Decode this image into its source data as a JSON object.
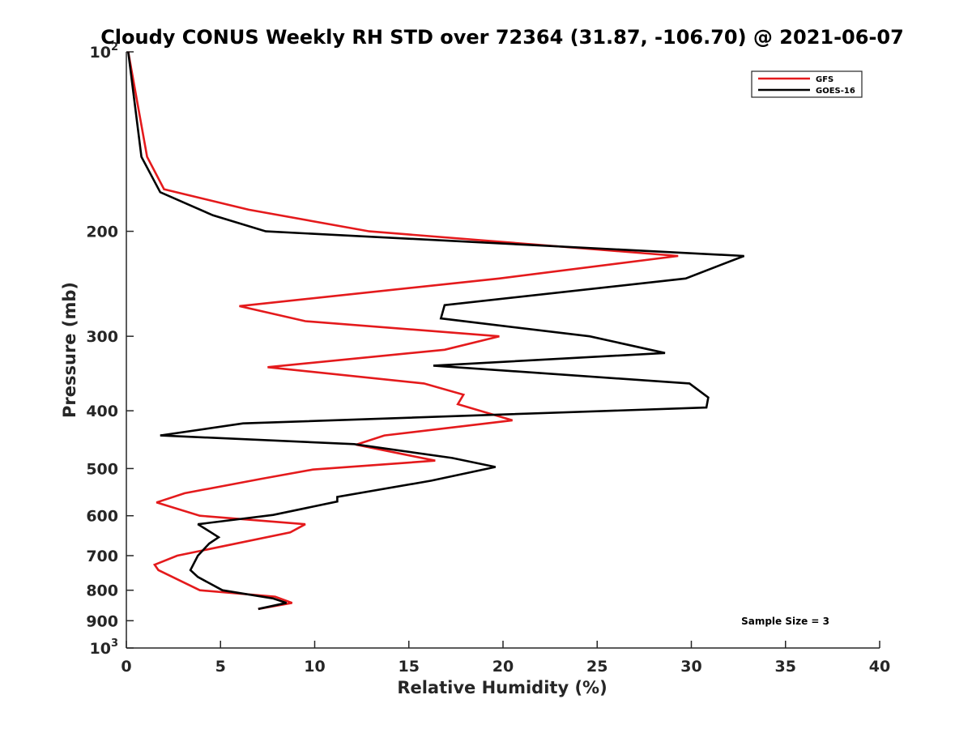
{
  "chart_data": {
    "type": "line",
    "title": "Cloudy CONUS Weekly RH STD over 72364 (31.87, -106.70) @ 2021-06-07",
    "xlabel": "Relative Humidity (%)",
    "ylabel": "Pressure (mb)",
    "xlim": [
      0,
      40
    ],
    "ylim": [
      100,
      1000
    ],
    "y_scale": "log",
    "y_reversed": true,
    "x_ticks": [
      "0",
      "5",
      "10",
      "15",
      "20",
      "25",
      "30",
      "35",
      "40"
    ],
    "y_ticks": [
      {
        "value": 100,
        "label": "10",
        "sup": "2"
      },
      {
        "value": 200,
        "label": "200",
        "sup": ""
      },
      {
        "value": 300,
        "label": "300",
        "sup": ""
      },
      {
        "value": 400,
        "label": "400",
        "sup": ""
      },
      {
        "value": 500,
        "label": "500",
        "sup": ""
      },
      {
        "value": 600,
        "label": "600",
        "sup": ""
      },
      {
        "value": 700,
        "label": "700",
        "sup": ""
      },
      {
        "value": 800,
        "label": "800",
        "sup": ""
      },
      {
        "value": 900,
        "label": "900",
        "sup": ""
      },
      {
        "value": 1000,
        "label": "10",
        "sup": "3"
      }
    ],
    "legend_position": "top-right",
    "annotation": "Sample Size = 3",
    "series": [
      {
        "name": "GFS",
        "color": "#e41a1c",
        "points": [
          {
            "x": 0.1,
            "p": 100
          },
          {
            "x": 1.1,
            "p": 150
          },
          {
            "x": 2.0,
            "p": 170
          },
          {
            "x": 6.5,
            "p": 184
          },
          {
            "x": 12.9,
            "p": 200
          },
          {
            "x": 29.3,
            "p": 220
          },
          {
            "x": 19.8,
            "p": 240
          },
          {
            "x": 6.0,
            "p": 267
          },
          {
            "x": 9.5,
            "p": 283
          },
          {
            "x": 19.8,
            "p": 300
          },
          {
            "x": 16.9,
            "p": 316
          },
          {
            "x": 7.5,
            "p": 338
          },
          {
            "x": 15.8,
            "p": 360
          },
          {
            "x": 17.9,
            "p": 376
          },
          {
            "x": 17.6,
            "p": 390
          },
          {
            "x": 20.5,
            "p": 415
          },
          {
            "x": 13.7,
            "p": 440
          },
          {
            "x": 12.2,
            "p": 456
          },
          {
            "x": 16.4,
            "p": 485
          },
          {
            "x": 9.9,
            "p": 502
          },
          {
            "x": 7.2,
            "p": 520
          },
          {
            "x": 3.1,
            "p": 550
          },
          {
            "x": 1.6,
            "p": 570
          },
          {
            "x": 3.9,
            "p": 600
          },
          {
            "x": 9.5,
            "p": 620
          },
          {
            "x": 8.7,
            "p": 640
          },
          {
            "x": 2.7,
            "p": 700
          },
          {
            "x": 1.5,
            "p": 725
          },
          {
            "x": 1.7,
            "p": 740
          },
          {
            "x": 3.9,
            "p": 800
          },
          {
            "x": 7.9,
            "p": 820
          },
          {
            "x": 8.8,
            "p": 840
          },
          {
            "x": 7.0,
            "p": 860
          }
        ]
      },
      {
        "name": "GOES-16",
        "color": "#000000",
        "points": [
          {
            "x": 0.1,
            "p": 100
          },
          {
            "x": 0.8,
            "p": 150
          },
          {
            "x": 1.8,
            "p": 172
          },
          {
            "x": 4.6,
            "p": 188
          },
          {
            "x": 7.4,
            "p": 200
          },
          {
            "x": 32.8,
            "p": 220
          },
          {
            "x": 29.7,
            "p": 240
          },
          {
            "x": 16.9,
            "p": 266
          },
          {
            "x": 16.7,
            "p": 280
          },
          {
            "x": 24.6,
            "p": 300
          },
          {
            "x": 28.6,
            "p": 320
          },
          {
            "x": 16.3,
            "p": 336
          },
          {
            "x": 29.9,
            "p": 360
          },
          {
            "x": 30.9,
            "p": 380
          },
          {
            "x": 30.8,
            "p": 395
          },
          {
            "x": 6.2,
            "p": 420
          },
          {
            "x": 1.8,
            "p": 440
          },
          {
            "x": 12.1,
            "p": 455
          },
          {
            "x": 17.3,
            "p": 480
          },
          {
            "x": 19.6,
            "p": 497
          },
          {
            "x": 16.2,
            "p": 524
          },
          {
            "x": 11.2,
            "p": 558
          },
          {
            "x": 11.2,
            "p": 568
          },
          {
            "x": 7.8,
            "p": 598
          },
          {
            "x": 3.8,
            "p": 620
          },
          {
            "x": 4.5,
            "p": 640
          },
          {
            "x": 4.9,
            "p": 652
          },
          {
            "x": 4.4,
            "p": 668
          },
          {
            "x": 3.8,
            "p": 700
          },
          {
            "x": 3.4,
            "p": 740
          },
          {
            "x": 3.8,
            "p": 760
          },
          {
            "x": 5.1,
            "p": 800
          },
          {
            "x": 7.8,
            "p": 826
          },
          {
            "x": 8.5,
            "p": 840
          },
          {
            "x": 7.0,
            "p": 860
          }
        ]
      }
    ]
  }
}
